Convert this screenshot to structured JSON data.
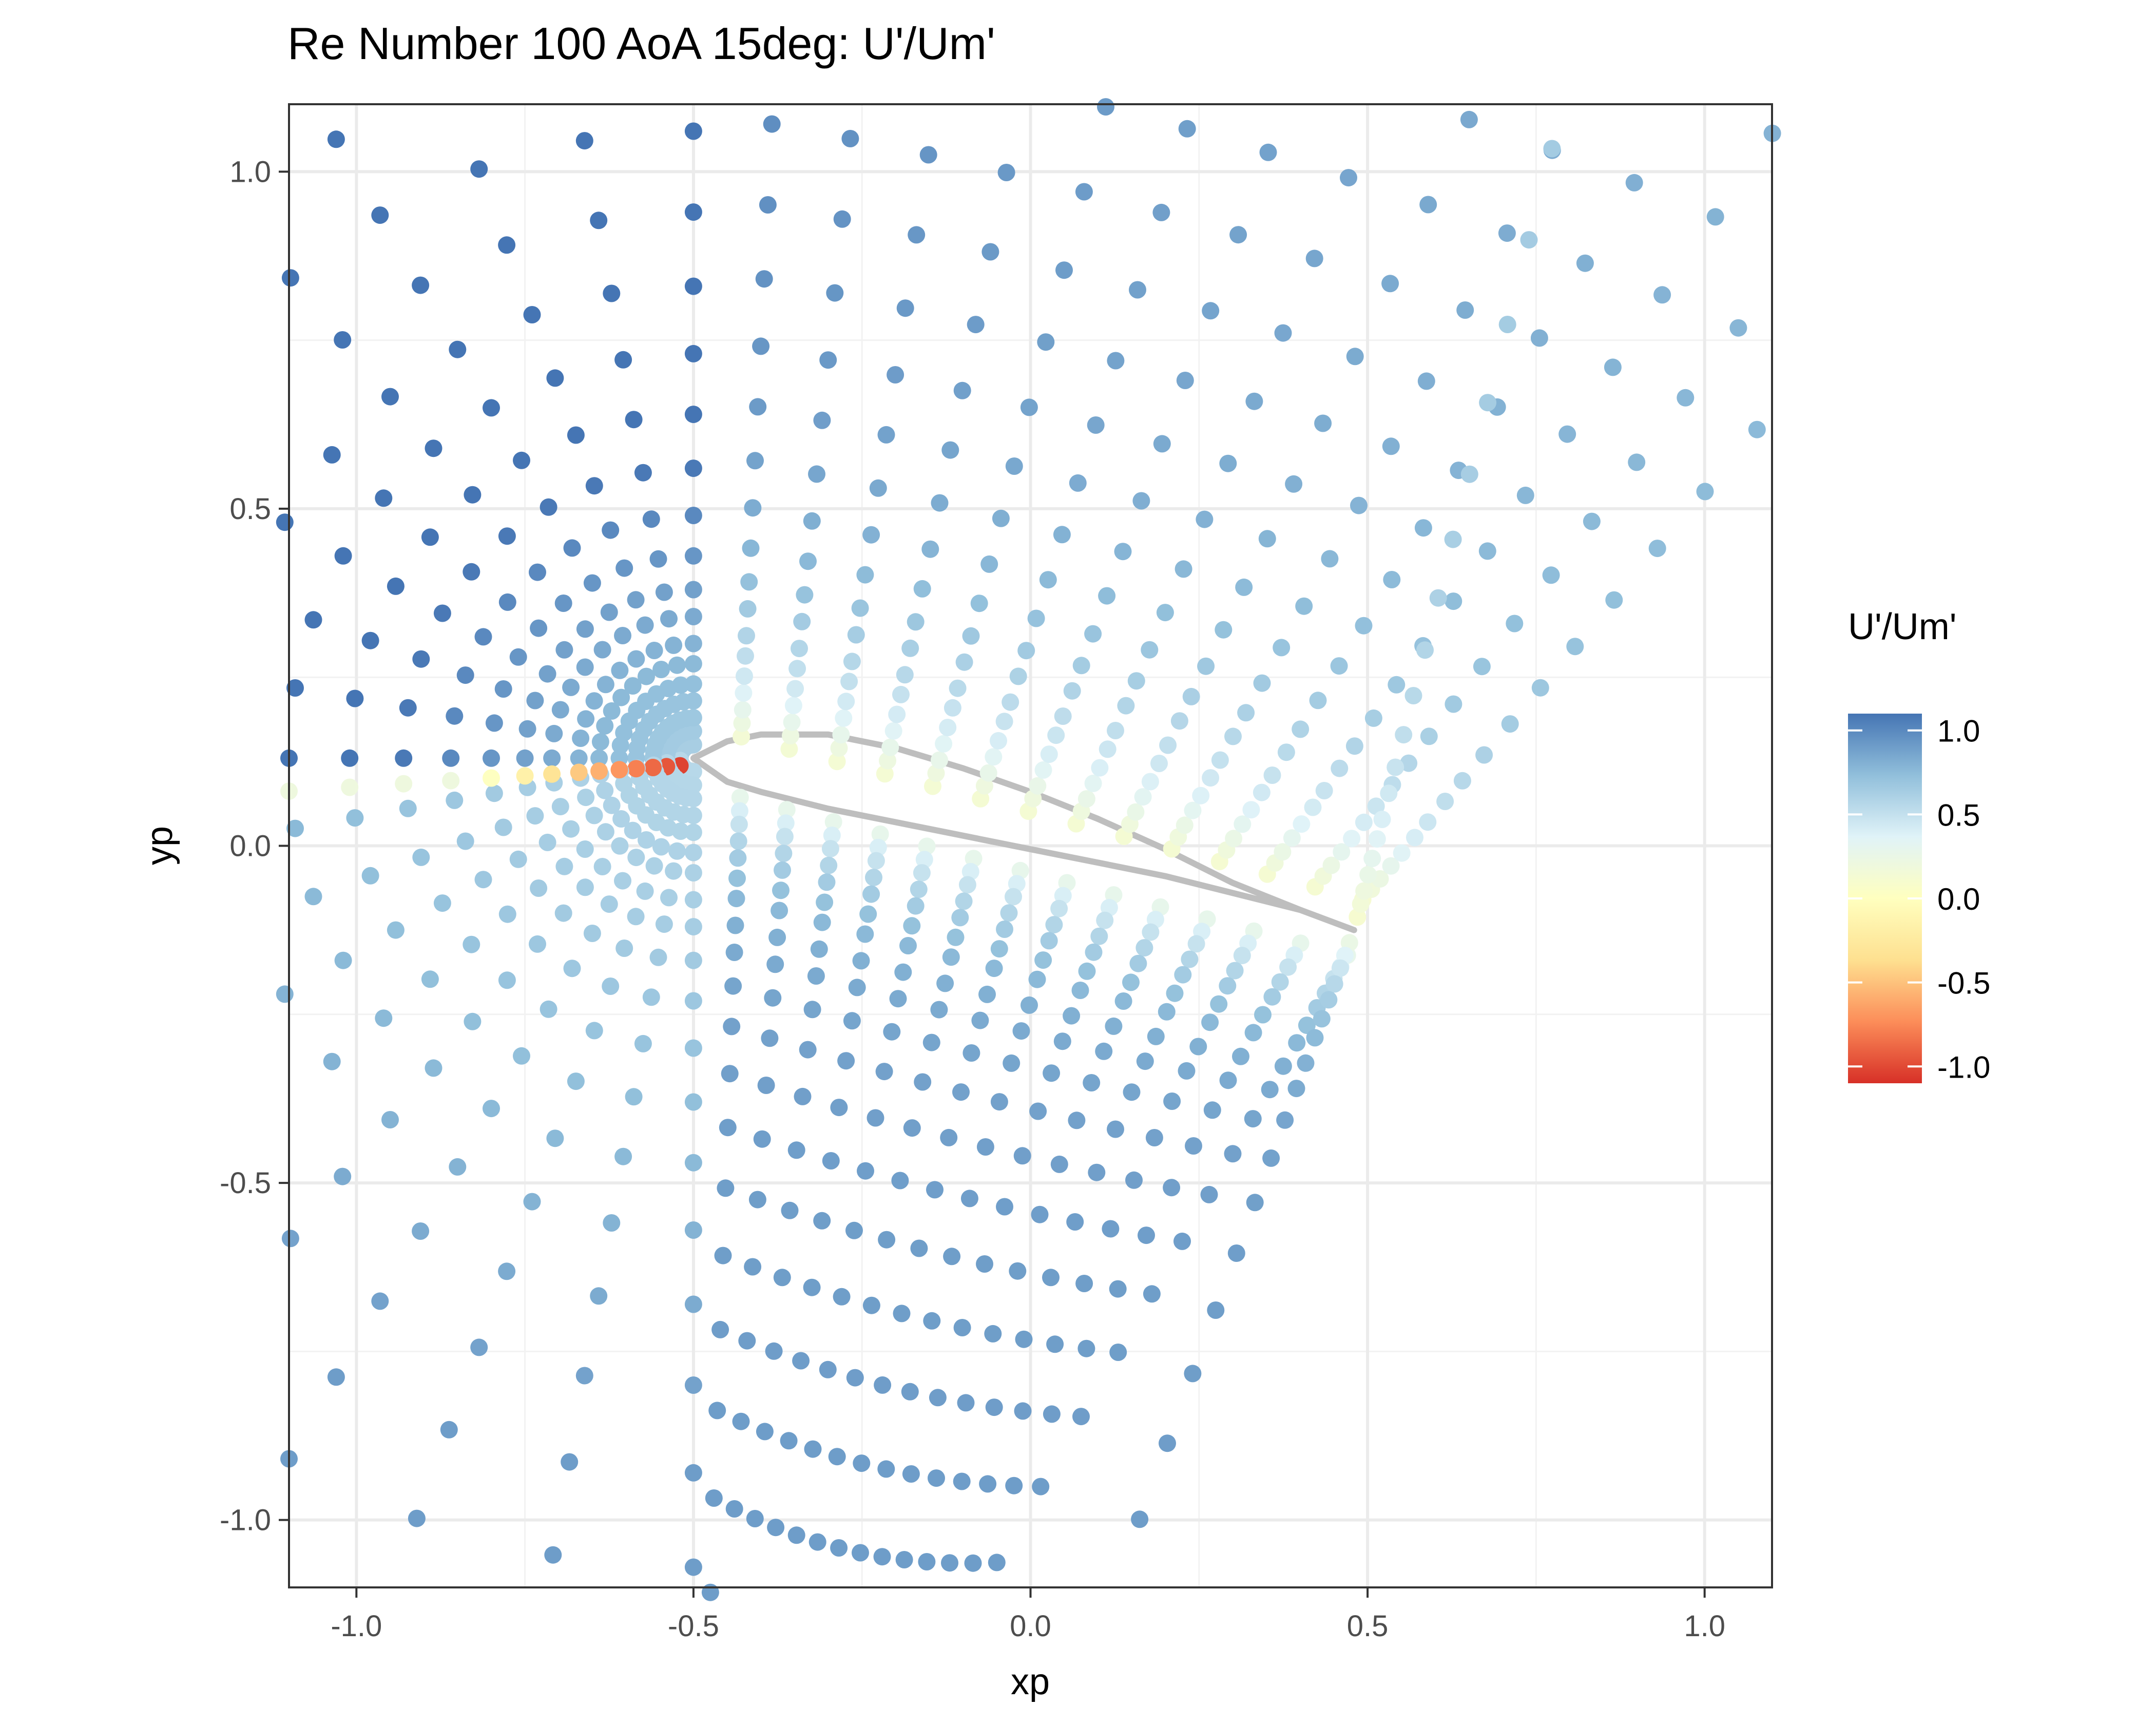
{
  "chart_data": {
    "type": "scatter",
    "title": "Re Number 100 AoA 15deg: U'/Um'",
    "xlabel": "xp",
    "ylabel": "yp",
    "xlim": [
      -1.1,
      1.1
    ],
    "ylim": [
      -1.1,
      1.1
    ],
    "x_ticks": [
      -1.0,
      -0.5,
      0.0,
      0.5,
      1.0
    ],
    "x_tick_labels": [
      "-1.0",
      "-0.5",
      "0.0",
      "0.5",
      "1.0"
    ],
    "y_ticks": [
      -1.0,
      -0.5,
      0.0,
      0.5,
      1.0
    ],
    "y_tick_labels": [
      "-1.0",
      "-0.5",
      "0.0",
      "0.5",
      "1.0"
    ],
    "grid": true,
    "legend": {
      "title": "U'/Um'",
      "position": "right",
      "type": "colorbar",
      "range": [
        -1.1,
        1.1
      ],
      "ticks": [
        1.0,
        0.5,
        0.0,
        -0.5,
        -1.0
      ],
      "tick_labels": [
        "1.0",
        "0.5",
        "0.0",
        "-0.5",
        "-1.0"
      ],
      "colors": [
        "#4575b4",
        "#91bfdb",
        "#e0f3f8",
        "#ffffbf",
        "#fee090",
        "#fc8d59",
        "#d73027"
      ]
    },
    "airfoil": {
      "leading_edge": [
        -0.5,
        0.13
      ],
      "trailing_edge": [
        0.48,
        -0.125
      ],
      "upper_surface": [
        [
          -0.5,
          0.13
        ],
        [
          -0.45,
          0.155
        ],
        [
          -0.4,
          0.165
        ],
        [
          -0.3,
          0.165
        ],
        [
          -0.2,
          0.145
        ],
        [
          -0.1,
          0.115
        ],
        [
          0.0,
          0.08
        ],
        [
          0.1,
          0.04
        ],
        [
          0.2,
          -0.005
        ],
        [
          0.3,
          -0.055
        ],
        [
          0.4,
          -0.095
        ],
        [
          0.48,
          -0.125
        ]
      ],
      "lower_surface": [
        [
          -0.5,
          0.13
        ],
        [
          -0.45,
          0.095
        ],
        [
          -0.4,
          0.08
        ],
        [
          -0.3,
          0.055
        ],
        [
          -0.2,
          0.035
        ],
        [
          -0.1,
          0.015
        ],
        [
          0.0,
          -0.005
        ],
        [
          0.1,
          -0.025
        ],
        [
          0.2,
          -0.045
        ],
        [
          0.3,
          -0.07
        ],
        [
          0.4,
          -0.095
        ],
        [
          0.48,
          -0.125
        ]
      ],
      "color": "#bebebe"
    },
    "grid_spec": {
      "leading_edge": [
        -0.5,
        0.13
      ],
      "trailing_edge": [
        0.48,
        -0.125
      ],
      "stations": 14,
      "radii": [
        0.02,
        0.04,
        0.06,
        0.085,
        0.11,
        0.14,
        0.17,
        0.21,
        0.25,
        0.3,
        0.36,
        0.43,
        0.51,
        0.6,
        0.7,
        0.81,
        0.93,
        1.06,
        1.2,
        1.35
      ],
      "upper_angles_deg": [
        90,
        100,
        110,
        120,
        130,
        140,
        150,
        160,
        170,
        180
      ],
      "lower_angles_deg": [
        190,
        200,
        210,
        220,
        230,
        240,
        250,
        260,
        270
      ],
      "wake_angle_upper_deg": 105,
      "wake_angle_lower_deg": 250,
      "boundary_layer": 0.2
    }
  }
}
